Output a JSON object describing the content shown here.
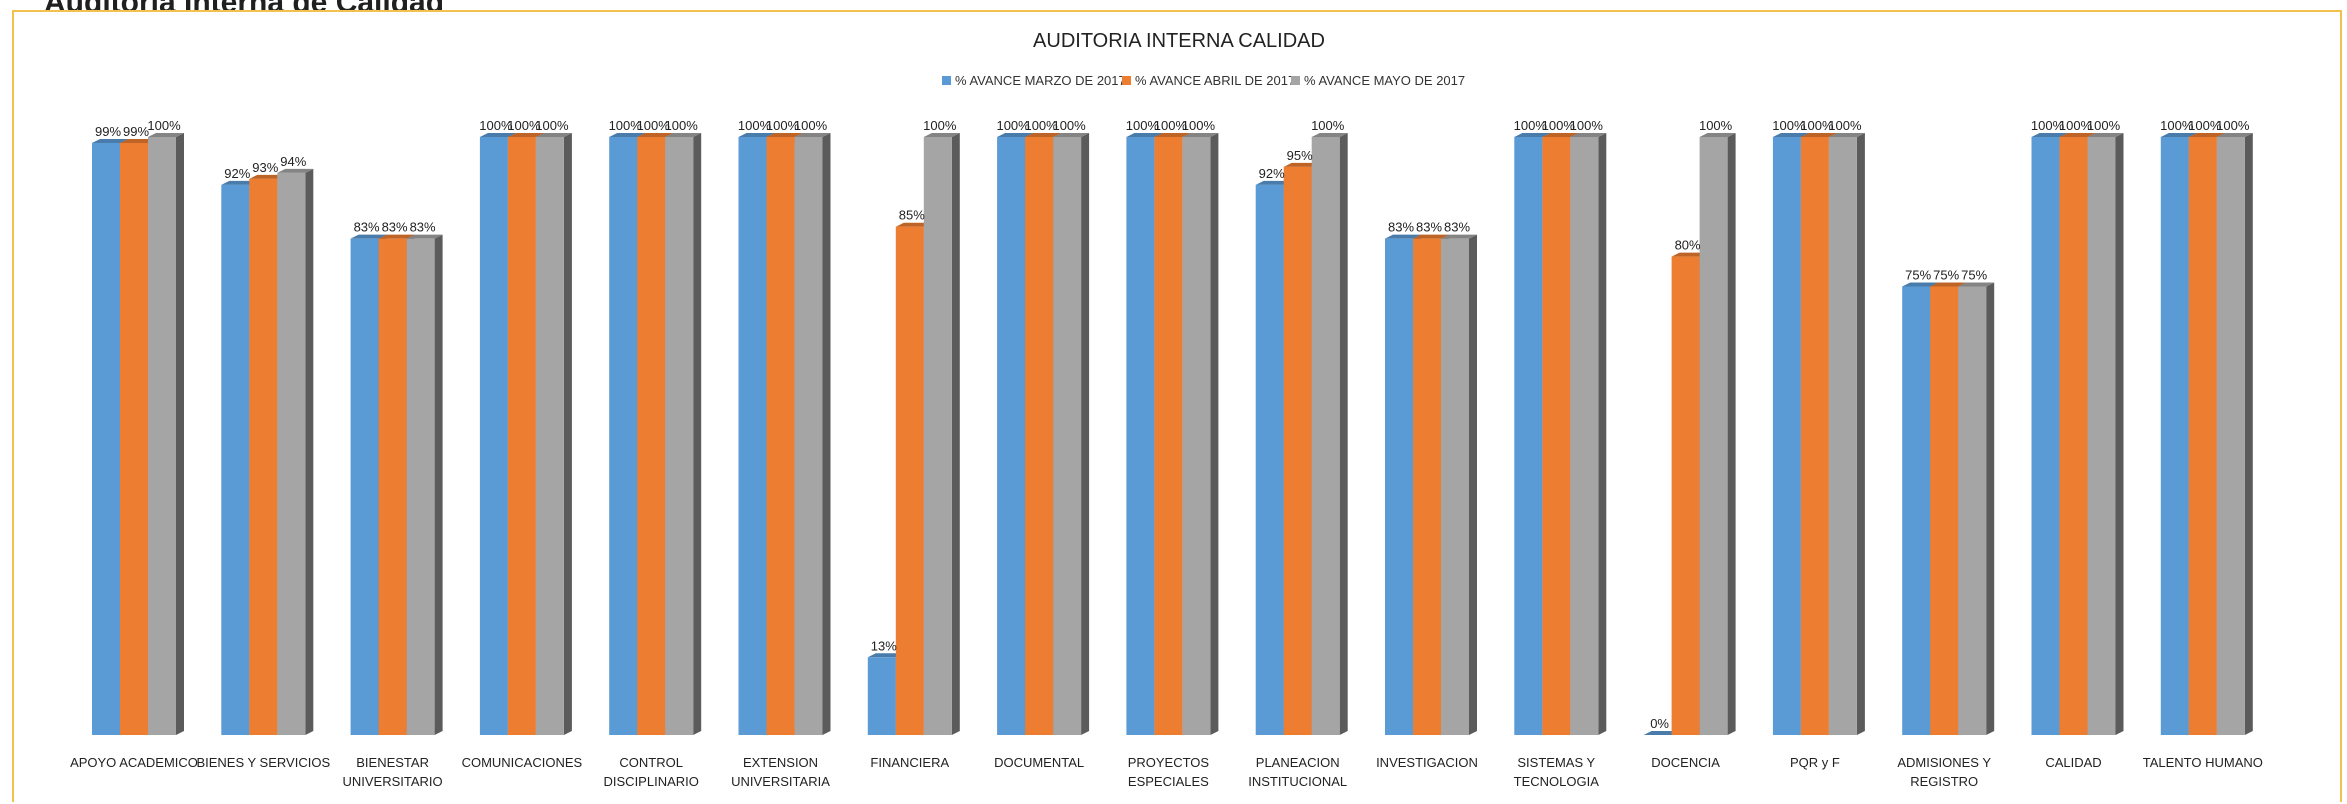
{
  "page": {
    "title": "Auditoria Interna de Calidad"
  },
  "chart_data": {
    "type": "bar",
    "title": "AUDITORIA INTERNA CALIDAD",
    "xlabel": "",
    "ylabel": "",
    "ylim": [
      0,
      100
    ],
    "grid": false,
    "legend_position": "top-center",
    "categories": [
      "APOYO ACADEMICO",
      "BIENES Y SERVICIOS",
      "BIENESTAR UNIVERSITARIO",
      "COMUNICACIONES",
      "CONTROL DISCIPLINARIO",
      "EXTENSION UNIVERSITARIA",
      "FINANCIERA",
      "DOCUMENTAL",
      "PROYECTOS ESPECIALES",
      "PLANEACION INSTITUCIONAL",
      "INVESTIGACION",
      "SISTEMAS Y TECNOLOGIA",
      "DOCENCIA",
      "PQR y F",
      "ADMISIONES Y REGISTRO",
      "CALIDAD",
      "TALENTO HUMANO"
    ],
    "series": [
      {
        "name": "% AVANCE MARZO DE 2017",
        "color": "#5b9bd5",
        "values": [
          99,
          92,
          83,
          100,
          100,
          100,
          13,
          100,
          100,
          92,
          83,
          100,
          0,
          100,
          75,
          100,
          100
        ],
        "labels": [
          "99%",
          "92%",
          "83%",
          "100%",
          "100%",
          "100%",
          "13%",
          "100%",
          "100%",
          "92%",
          "83%",
          "100%",
          "0%",
          "100%",
          "75%",
          "100%",
          "100%"
        ]
      },
      {
        "name": "% AVANCE ABRIL DE 2017",
        "color": "#ed7d31",
        "values": [
          99,
          93,
          83,
          100,
          100,
          100,
          85,
          100,
          100,
          95,
          83,
          100,
          80,
          100,
          75,
          100,
          100
        ],
        "labels": [
          "99%",
          "93%",
          "83%",
          "100%",
          "100%",
          "100%",
          "85%",
          "100%",
          "100%",
          "95%",
          "83%",
          "100%",
          "80%",
          "100%",
          "75%",
          "100%",
          "100%"
        ]
      },
      {
        "name": "% AVANCE MAYO DE 2017",
        "color": "#a5a5a5",
        "values": [
          100,
          94,
          83,
          100,
          100,
          100,
          100,
          100,
          100,
          100,
          83,
          100,
          100,
          100,
          75,
          100,
          100
        ],
        "labels": [
          "100%",
          "94%",
          "83%",
          "100%",
          "100%",
          "100%",
          "100%",
          "100%",
          "100%",
          "100%",
          "83%",
          "100%",
          "100%",
          "100%",
          "75%",
          "100%",
          "100%"
        ]
      }
    ]
  }
}
